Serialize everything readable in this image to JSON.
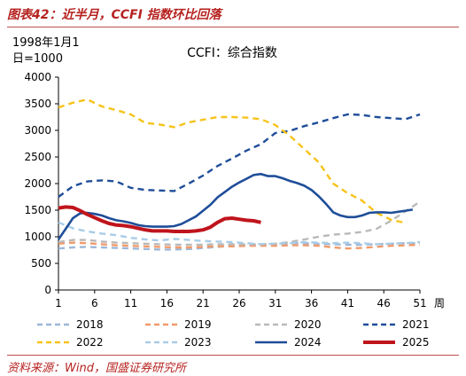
{
  "header": {
    "title": "图表42：近半月，CCFI 指数环比回落",
    "base_line1": "1998年1月1",
    "base_line2": "日=1000"
  },
  "footer": {
    "source": "资料来源：Wind，国盛证券研究所"
  },
  "chart_data": {
    "type": "line",
    "title": "CCFI：综合指数",
    "xlabel": "周",
    "ylabel": "",
    "xlim": [
      1,
      51
    ],
    "ylim": [
      0,
      4000
    ],
    "x_ticks": [
      1,
      6,
      11,
      16,
      21,
      26,
      31,
      36,
      41,
      46,
      51
    ],
    "y_ticks": [
      0,
      500,
      1000,
      1500,
      2000,
      2500,
      3000,
      3500,
      4000
    ],
    "grid": false,
    "legend_position": "bottom",
    "series": [
      {
        "name": "2018",
        "color": "#9db7d8",
        "dash": "dash",
        "x": [
          1,
          3,
          5,
          7,
          9,
          11,
          13,
          15,
          17,
          19,
          21,
          23,
          25,
          27,
          29,
          31,
          33,
          35,
          37,
          39,
          41,
          43,
          45,
          47,
          49,
          51
        ],
        "values": [
          780,
          800,
          810,
          800,
          790,
          780,
          770,
          760,
          760,
          770,
          790,
          810,
          830,
          840,
          850,
          860,
          880,
          880,
          870,
          860,
          850,
          850,
          860,
          870,
          880,
          880
        ]
      },
      {
        "name": "2019",
        "color": "#f19a6a",
        "dash": "dash",
        "x": [
          1,
          3,
          5,
          7,
          9,
          11,
          13,
          15,
          17,
          19,
          21,
          23,
          25,
          27,
          29,
          31,
          33,
          35,
          37,
          39,
          41,
          43,
          45,
          47,
          49,
          51
        ],
        "values": [
          870,
          890,
          880,
          860,
          840,
          830,
          820,
          810,
          800,
          800,
          810,
          820,
          820,
          830,
          830,
          830,
          840,
          840,
          830,
          800,
          780,
          790,
          810,
          830,
          840,
          850
        ]
      },
      {
        "name": "2020",
        "color": "#b9b9b9",
        "dash": "dash",
        "x": [
          1,
          3,
          5,
          7,
          9,
          11,
          13,
          15,
          17,
          19,
          21,
          23,
          25,
          27,
          29,
          31,
          33,
          35,
          37,
          39,
          41,
          43,
          45,
          47,
          49,
          51
        ],
        "values": [
          900,
          940,
          940,
          910,
          890,
          880,
          870,
          860,
          850,
          850,
          850,
          860,
          860,
          860,
          860,
          870,
          900,
          950,
          1000,
          1040,
          1060,
          1090,
          1150,
          1300,
          1480,
          1660
        ]
      },
      {
        "name": "2021",
        "color": "#1f4e99",
        "dash": "dash",
        "x": [
          1,
          3,
          5,
          7,
          9,
          11,
          13,
          15,
          17,
          19,
          21,
          23,
          25,
          27,
          29,
          31,
          33,
          35,
          37,
          39,
          41,
          43,
          45,
          47,
          49,
          51
        ],
        "values": [
          1750,
          1950,
          2040,
          2060,
          2040,
          1920,
          1880,
          1870,
          1860,
          2000,
          2150,
          2330,
          2470,
          2620,
          2740,
          2950,
          2990,
          3080,
          3150,
          3230,
          3300,
          3290,
          3250,
          3230,
          3210,
          3300
        ]
      },
      {
        "name": "2022",
        "color": "#f7c31a",
        "dash": "dash",
        "x": [
          1,
          3,
          5,
          7,
          9,
          11,
          13,
          15,
          17,
          19,
          21,
          23,
          25,
          27,
          29,
          31,
          33,
          35,
          37,
          39,
          41,
          43,
          45,
          47,
          49
        ],
        "values": [
          3430,
          3520,
          3580,
          3450,
          3380,
          3300,
          3140,
          3110,
          3060,
          3150,
          3200,
          3250,
          3250,
          3240,
          3210,
          3100,
          2900,
          2650,
          2400,
          2000,
          1820,
          1680,
          1450,
          1320,
          1260
        ]
      },
      {
        "name": "2023",
        "color": "#a9cce7",
        "dash": "dash",
        "x": [
          1,
          3,
          5,
          7,
          9,
          11,
          13,
          15,
          17,
          19,
          21,
          23,
          25,
          27,
          29,
          31,
          33,
          35,
          37,
          39,
          41,
          43,
          45,
          47,
          49,
          51
        ],
        "values": [
          1270,
          1160,
          1100,
          1060,
          1030,
          980,
          950,
          930,
          960,
          940,
          920,
          910,
          900,
          880,
          860,
          870,
          880,
          900,
          890,
          880,
          890,
          880,
          860,
          870,
          880,
          900
        ]
      },
      {
        "name": "2024",
        "color": "#1f4e99",
        "dash": "solid",
        "x": [
          1,
          2,
          3,
          4,
          5,
          6,
          7,
          8,
          9,
          10,
          11,
          12,
          13,
          14,
          15,
          16,
          17,
          18,
          19,
          20,
          21,
          22,
          23,
          24,
          25,
          26,
          27,
          28,
          29,
          30,
          31,
          32,
          33,
          34,
          35,
          36,
          37,
          38,
          39,
          40,
          41,
          42,
          43,
          44,
          45,
          46,
          47,
          48,
          49,
          50
        ],
        "values": [
          950,
          1150,
          1350,
          1440,
          1450,
          1430,
          1400,
          1350,
          1310,
          1290,
          1260,
          1220,
          1200,
          1190,
          1190,
          1190,
          1200,
          1240,
          1310,
          1380,
          1490,
          1600,
          1740,
          1840,
          1940,
          2020,
          2090,
          2160,
          2180,
          2140,
          2140,
          2100,
          2050,
          2010,
          1960,
          1880,
          1760,
          1620,
          1460,
          1400,
          1370,
          1370,
          1400,
          1450,
          1460,
          1460,
          1450,
          1470,
          1490,
          1510
        ]
      },
      {
        "name": "2025",
        "color": "#c0141c",
        "dash": "solid",
        "x": [
          1,
          2,
          3,
          4,
          5,
          6,
          7,
          8,
          9,
          10,
          11,
          12,
          13,
          14,
          15,
          16,
          17,
          18,
          19,
          20,
          21,
          22,
          23,
          24,
          25,
          26,
          27,
          28,
          29
        ],
        "values": [
          1540,
          1560,
          1550,
          1490,
          1420,
          1360,
          1300,
          1250,
          1220,
          1210,
          1190,
          1160,
          1130,
          1110,
          1110,
          1110,
          1100,
          1100,
          1100,
          1110,
          1130,
          1180,
          1270,
          1340,
          1350,
          1330,
          1310,
          1300,
          1270
        ]
      }
    ]
  }
}
